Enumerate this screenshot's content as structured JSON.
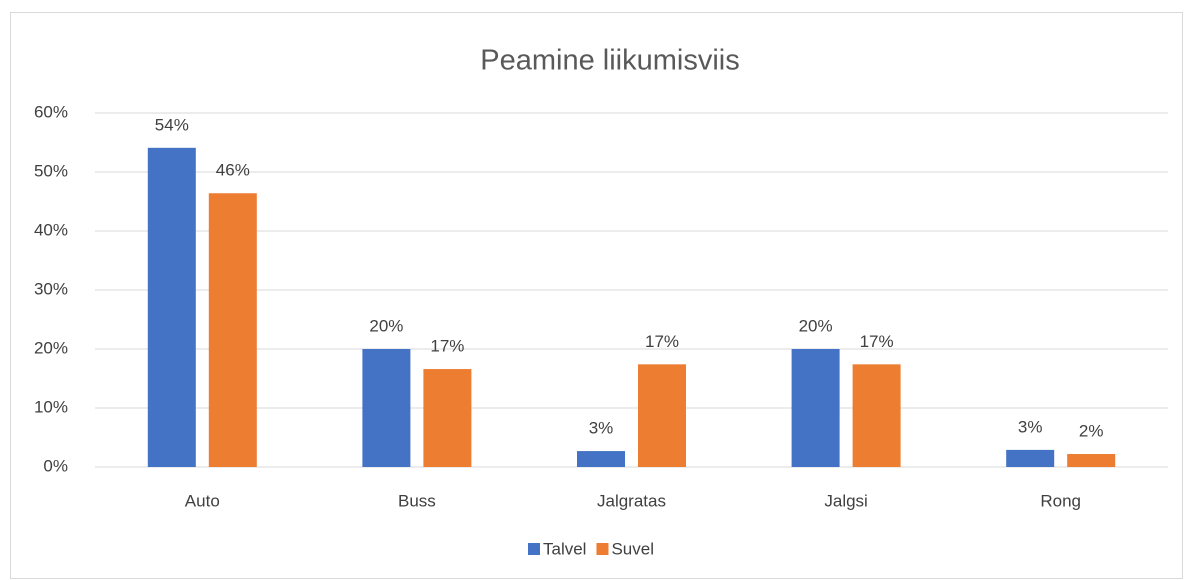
{
  "chart_data": {
    "type": "bar",
    "title": "Peamine liikumisviis",
    "categories": [
      "Auto",
      "Buss",
      "Jalgratas",
      "Jalgsi",
      "Rong"
    ],
    "series": [
      {
        "name": "Talvel",
        "color": "#4472c4",
        "values": [
          54.1,
          20,
          2.7,
          20,
          2.9
        ],
        "value_labels": [
          "54%",
          "20%",
          "3%",
          "20%",
          "3%"
        ]
      },
      {
        "name": "Suvel",
        "color": "#ed7d31",
        "values": [
          46.4,
          16.6,
          17.4,
          17.4,
          2.2
        ],
        "value_labels": [
          "46%",
          "17%",
          "17%",
          "17%",
          "2%"
        ]
      }
    ],
    "ylim": [
      0,
      60
    ],
    "yticks": [
      {
        "value": 0,
        "label": "0%"
      },
      {
        "value": 10,
        "label": "10%"
      },
      {
        "value": 20,
        "label": "20%"
      },
      {
        "value": 30,
        "label": "30%"
      },
      {
        "value": 40,
        "label": "40%"
      },
      {
        "value": 50,
        "label": "50%"
      },
      {
        "value": 60,
        "label": "60%"
      }
    ],
    "grid": true,
    "legend": "bottom"
  }
}
